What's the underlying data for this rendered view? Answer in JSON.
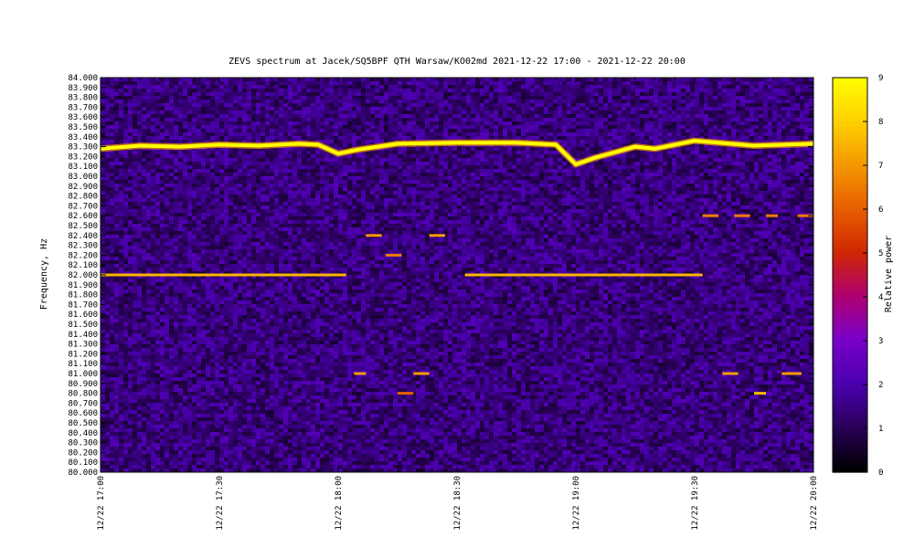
{
  "chart_data": {
    "type": "heatmap",
    "title": "ZEVS spectrum at Jacek/SQ5BPF QTH Warsaw/KO02md 2021-12-22 17:00 - 2021-12-22 20:00",
    "ylabel": "Frequency, Hz",
    "colorbar_label": "Relative power",
    "x_range": [
      "2021-12-22 17:00",
      "2021-12-22 20:00"
    ],
    "ylim": [
      80.0,
      84.0
    ],
    "zlim": [
      0,
      9
    ],
    "x_tick_labels": [
      "12/22 17:00",
      "12/22 17:30",
      "12/22 18:00",
      "12/22 18:30",
      "12/22 19:00",
      "12/22 19:30",
      "12/22 20:00"
    ],
    "y_tick_labels": [
      "80.000",
      "80.100",
      "80.200",
      "80.300",
      "80.400",
      "80.500",
      "80.600",
      "80.700",
      "80.800",
      "80.900",
      "81.000",
      "81.100",
      "81.200",
      "81.300",
      "81.400",
      "81.500",
      "81.600",
      "81.700",
      "81.800",
      "81.900",
      "82.000",
      "82.100",
      "82.200",
      "82.300",
      "82.400",
      "82.500",
      "82.600",
      "82.700",
      "82.800",
      "82.900",
      "83.000",
      "83.100",
      "83.200",
      "83.300",
      "83.400",
      "83.500",
      "83.600",
      "83.700",
      "83.800",
      "83.900",
      "84.000"
    ],
    "colorbar_ticks": [
      "0",
      "1",
      "2",
      "3",
      "4",
      "5",
      "6",
      "7",
      "8",
      "9"
    ],
    "colormap": [
      "#000000",
      "#2a005a",
      "#4b00b0",
      "#7a00c8",
      "#b0006e",
      "#d02800",
      "#e86000",
      "#f49a00",
      "#ffd200",
      "#ffff00"
    ],
    "background_level": 1.4,
    "carrier_trace": {
      "description": "strong signal ~83.3 Hz",
      "times": [
        "17:00",
        "17:10",
        "17:20",
        "17:30",
        "17:40",
        "17:50",
        "17:55",
        "18:00",
        "18:05",
        "18:15",
        "18:30",
        "18:45",
        "18:55",
        "19:00",
        "19:05",
        "19:15",
        "19:20",
        "19:30",
        "19:45",
        "20:00"
      ],
      "freqs": [
        83.28,
        83.31,
        83.3,
        83.32,
        83.31,
        83.33,
        83.32,
        83.23,
        83.27,
        83.33,
        83.34,
        83.34,
        83.32,
        83.12,
        83.19,
        83.3,
        83.28,
        83.36,
        83.31,
        83.33
      ],
      "level": 9
    },
    "segments": [
      {
        "freq": 82.0,
        "start": "17:00",
        "end": "18:02",
        "level": 7.5
      },
      {
        "freq": 82.0,
        "start": "18:32",
        "end": "19:32",
        "level": 7.5
      },
      {
        "freq": 82.4,
        "start": "18:07",
        "end": "18:11",
        "level": 7
      },
      {
        "freq": 82.4,
        "start": "18:23",
        "end": "18:27",
        "level": 7
      },
      {
        "freq": 82.2,
        "start": "18:12",
        "end": "18:16",
        "level": 6.5
      },
      {
        "freq": 81.0,
        "start": "18:04",
        "end": "18:07",
        "level": 7
      },
      {
        "freq": 81.0,
        "start": "18:19",
        "end": "18:23",
        "level": 7
      },
      {
        "freq": 80.8,
        "start": "18:15",
        "end": "18:19",
        "level": 6
      },
      {
        "freq": 82.6,
        "start": "19:32",
        "end": "19:36",
        "level": 6.5
      },
      {
        "freq": 82.6,
        "start": "19:40",
        "end": "19:44",
        "level": 6.5
      },
      {
        "freq": 82.6,
        "start": "19:48",
        "end": "19:51",
        "level": 6.5
      },
      {
        "freq": 82.6,
        "start": "19:56",
        "end": "20:00",
        "level": 6.5
      },
      {
        "freq": 81.0,
        "start": "19:37",
        "end": "19:41",
        "level": 7
      },
      {
        "freq": 81.0,
        "start": "19:52",
        "end": "19:57",
        "level": 7
      },
      {
        "freq": 80.8,
        "start": "19:45",
        "end": "19:48",
        "level": 7.5
      }
    ]
  }
}
